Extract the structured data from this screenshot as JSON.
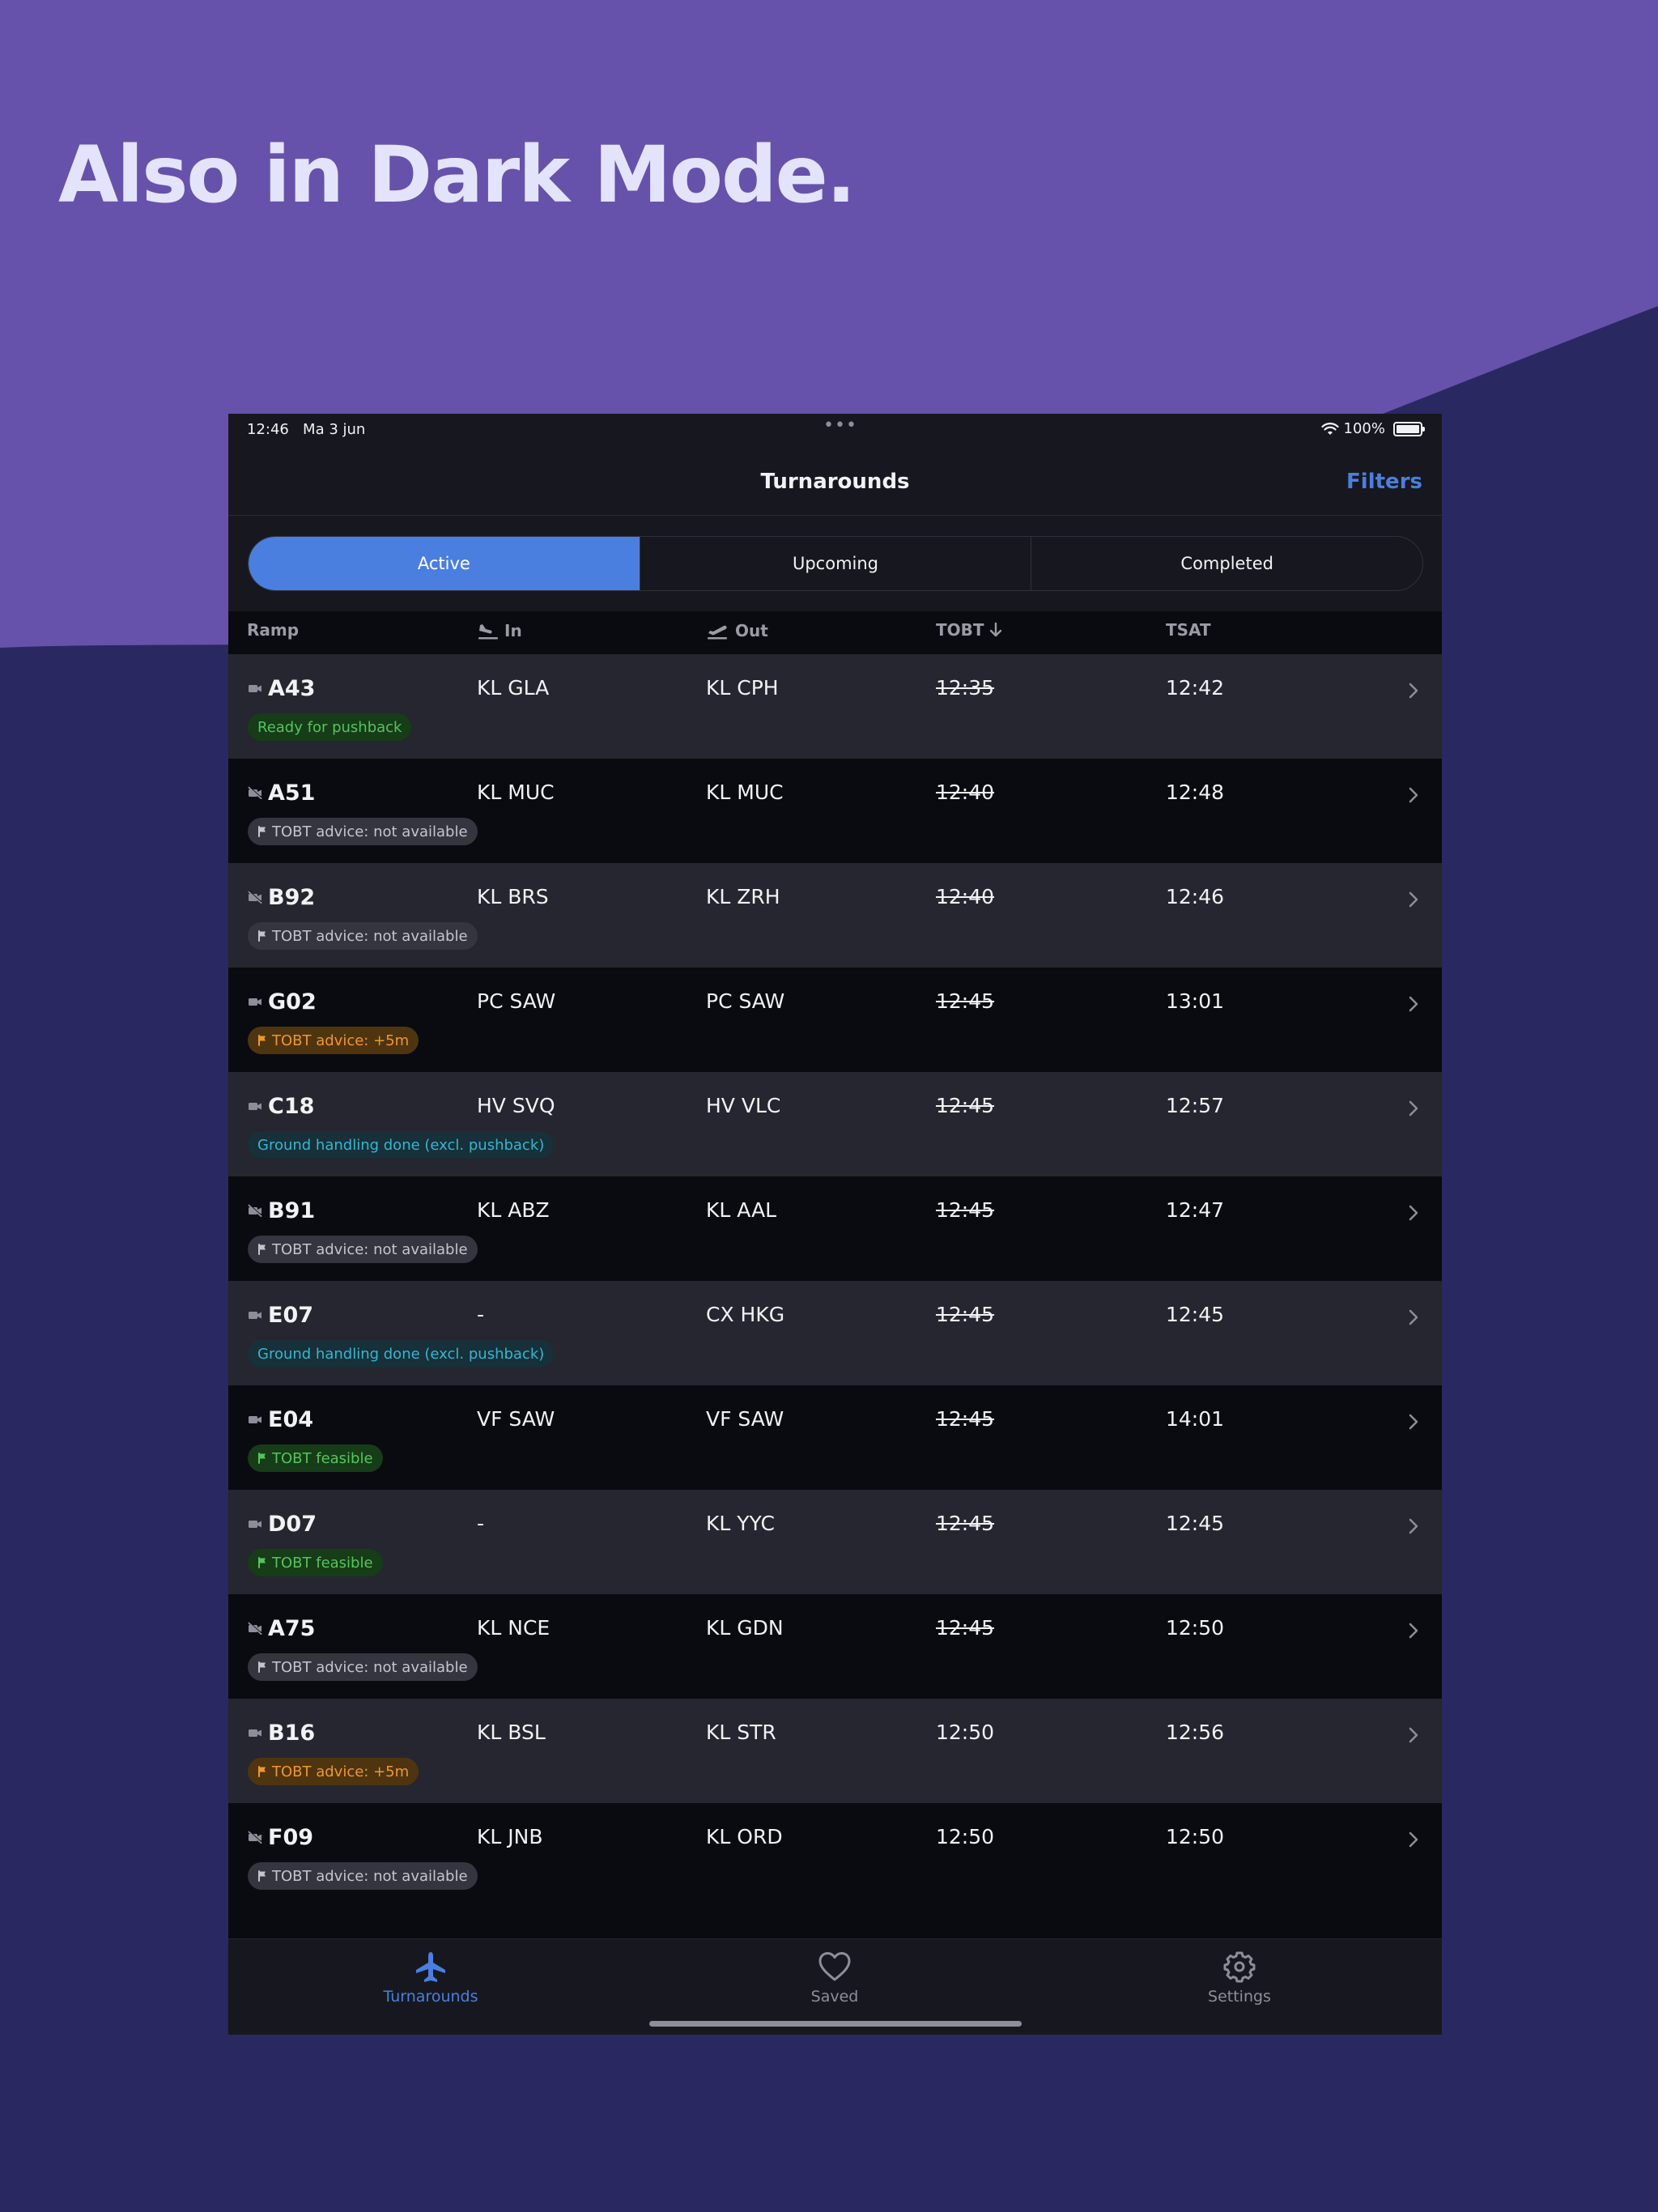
{
  "headline": "Also in Dark Mode.",
  "status_bar": {
    "time": "12:46",
    "date": "Ma 3 jun",
    "battery": "100%"
  },
  "nav": {
    "title": "Turnarounds",
    "filters_label": "Filters"
  },
  "segments": [
    "Active",
    "Upcoming",
    "Completed"
  ],
  "active_segment": "Active",
  "columns": {
    "ramp": "Ramp",
    "in": "In",
    "out": "Out",
    "tobt": "TOBT",
    "tsat": "TSAT"
  },
  "colors": {
    "accent": "#4a7fe0",
    "badge_green": "#55c45d",
    "badge_orange": "#f0962e",
    "badge_teal": "#35b6d0"
  },
  "rows": [
    {
      "ramp": "A43",
      "camera": "on",
      "in": "KL GLA",
      "out": "KL CPH",
      "tobt": "12:35",
      "tobt_struck": true,
      "tsat": "12:42",
      "badge": {
        "text": "Ready for pushback",
        "style": "green",
        "flag": false
      }
    },
    {
      "ramp": "A51",
      "camera": "off",
      "in": "KL MUC",
      "out": "KL MUC",
      "tobt": "12:40",
      "tobt_struck": true,
      "tsat": "12:48",
      "badge": {
        "text": "TOBT advice: not available",
        "style": "gray",
        "flag": true
      }
    },
    {
      "ramp": "B92",
      "camera": "off",
      "in": "KL BRS",
      "out": "KL ZRH",
      "tobt": "12:40",
      "tobt_struck": true,
      "tsat": "12:46",
      "badge": {
        "text": "TOBT advice: not available",
        "style": "gray",
        "flag": true
      }
    },
    {
      "ramp": "G02",
      "camera": "on",
      "in": "PC SAW",
      "out": "PC SAW",
      "tobt": "12:45",
      "tobt_struck": true,
      "tsat": "13:01",
      "badge": {
        "text": "TOBT advice: +5m",
        "style": "orange",
        "flag": true
      }
    },
    {
      "ramp": "C18",
      "camera": "on",
      "in": "HV SVQ",
      "out": "HV VLC",
      "tobt": "12:45",
      "tobt_struck": true,
      "tsat": "12:57",
      "badge": {
        "text": "Ground handling done (excl. pushback)",
        "style": "teal",
        "flag": false
      }
    },
    {
      "ramp": "B91",
      "camera": "off",
      "in": "KL ABZ",
      "out": "KL AAL",
      "tobt": "12:45",
      "tobt_struck": true,
      "tsat": "12:47",
      "badge": {
        "text": "TOBT advice: not available",
        "style": "gray",
        "flag": true
      }
    },
    {
      "ramp": "E07",
      "camera": "on",
      "in": "-",
      "out": "CX HKG",
      "tobt": "12:45",
      "tobt_struck": true,
      "tsat": "12:45",
      "badge": {
        "text": "Ground handling done (excl. pushback)",
        "style": "teal",
        "flag": false
      }
    },
    {
      "ramp": "E04",
      "camera": "on",
      "in": "VF SAW",
      "out": "VF SAW",
      "tobt": "12:45",
      "tobt_struck": true,
      "tsat": "14:01",
      "badge": {
        "text": "TOBT feasible",
        "style": "green",
        "flag": true
      }
    },
    {
      "ramp": "D07",
      "camera": "on",
      "in": "-",
      "out": "KL YYC",
      "tobt": "12:45",
      "tobt_struck": true,
      "tsat": "12:45",
      "badge": {
        "text": "TOBT feasible",
        "style": "green",
        "flag": true
      }
    },
    {
      "ramp": "A75",
      "camera": "off",
      "in": "KL NCE",
      "out": "KL GDN",
      "tobt": "12:45",
      "tobt_struck": true,
      "tsat": "12:50",
      "badge": {
        "text": "TOBT advice: not available",
        "style": "gray",
        "flag": true
      }
    },
    {
      "ramp": "B16",
      "camera": "on",
      "in": "KL BSL",
      "out": "KL STR",
      "tobt": "12:50",
      "tobt_struck": false,
      "tsat": "12:56",
      "badge": {
        "text": "TOBT advice: +5m",
        "style": "orange",
        "flag": true
      }
    },
    {
      "ramp": "F09",
      "camera": "off",
      "in": "KL JNB",
      "out": "KL ORD",
      "tobt": "12:50",
      "tobt_struck": false,
      "tsat": "12:50",
      "badge": {
        "text": "TOBT advice: not available",
        "style": "gray",
        "flag": true
      }
    }
  ],
  "tabs": [
    {
      "label": "Turnarounds",
      "icon": "airplane-icon",
      "active": true
    },
    {
      "label": "Saved",
      "icon": "heart-icon",
      "active": false
    },
    {
      "label": "Settings",
      "icon": "gear-icon",
      "active": false
    }
  ]
}
